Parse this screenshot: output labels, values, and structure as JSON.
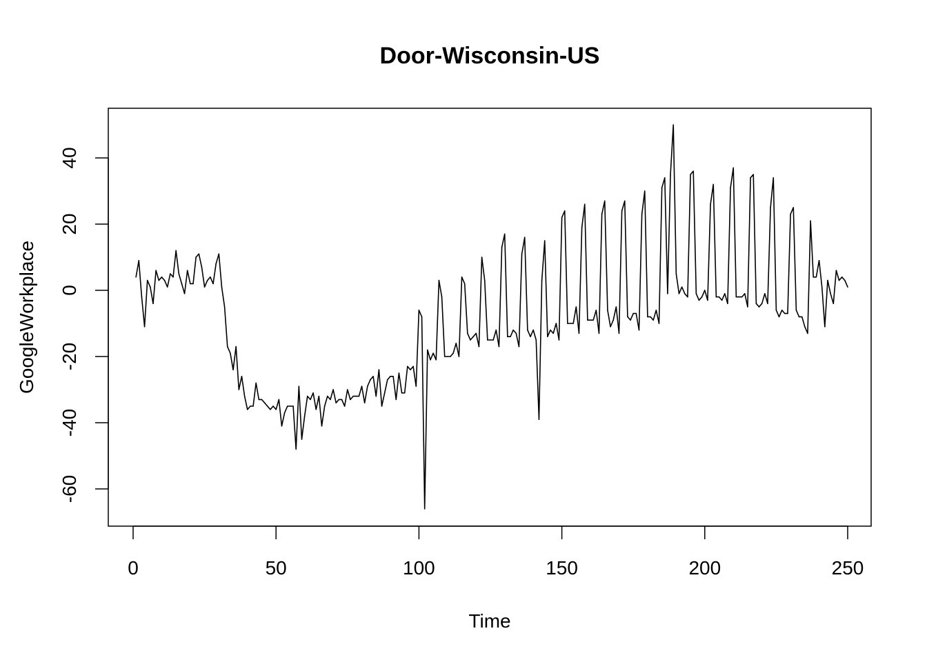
{
  "chart_data": {
    "type": "line",
    "title": "Door-Wisconsin-US",
    "xlabel": "Time",
    "ylabel": "GoogleWorkplace",
    "xlim": [
      1,
      248
    ],
    "ylim": [
      -66,
      50
    ],
    "x_ticks": [
      0,
      50,
      100,
      150,
      200,
      250
    ],
    "y_ticks": [
      -60,
      -40,
      -20,
      0,
      20,
      40
    ],
    "x_tick_labels": [
      "0",
      "50",
      "100",
      "150",
      "200",
      "250"
    ],
    "y_tick_labels": [
      "-60",
      "-40",
      "-20",
      "0",
      "20",
      "40"
    ],
    "grid": false,
    "legend": "none",
    "line_color": "#000000",
    "series": [
      {
        "x_start": 1,
        "values": [
          4,
          9,
          -2,
          -11,
          3,
          1,
          -4,
          6,
          3,
          4,
          3,
          1,
          5,
          4,
          12,
          5,
          2,
          -1,
          6,
          2,
          2,
          10,
          11,
          7,
          1,
          3,
          4,
          2,
          8,
          11,
          1,
          -5,
          -17,
          -19,
          -24,
          -17,
          -30,
          -26,
          -32,
          -36,
          -35,
          -35,
          -28,
          -33,
          -33,
          -34,
          -35,
          -36,
          -35,
          -36,
          -33,
          -41,
          -37,
          -35,
          -35,
          -35,
          -48,
          -29,
          -45,
          -38,
          -32,
          -33,
          -31,
          -36,
          -32,
          -41,
          -35,
          -32,
          -33,
          -30,
          -34,
          -33,
          -33,
          -35,
          -30,
          -33,
          -32,
          -32,
          -32,
          -29,
          -34,
          -29,
          -27,
          -26,
          -32,
          -24,
          -35,
          -31,
          -27,
          -26,
          -26,
          -33,
          -25,
          -31,
          -31,
          -23,
          -24,
          -23,
          -29,
          -6,
          -8,
          -66,
          -18,
          -21,
          -19,
          -21,
          3,
          -2,
          -20,
          -20,
          -20,
          -19,
          -16,
          -20,
          4,
          2,
          -13,
          -15,
          -14,
          -13,
          -17,
          10,
          3,
          -15,
          -15,
          -15,
          -12,
          -17,
          13,
          17,
          -14,
          -14,
          -12,
          -13,
          -17,
          11,
          16,
          -12,
          -14,
          -12,
          -15,
          -39,
          3,
          15,
          -14,
          -12,
          -13,
          -10,
          -15,
          22,
          24,
          -10,
          -10,
          -10,
          -5,
          -13,
          19,
          26,
          -9,
          -9,
          -9,
          -6,
          -13,
          23,
          27,
          -6,
          -11,
          -9,
          -5,
          -13,
          24,
          27,
          -8,
          -9,
          -7,
          -7,
          -12,
          23,
          30,
          -8,
          -8,
          -9,
          -6,
          -10,
          31,
          34,
          -1,
          35,
          50,
          5,
          -1,
          1,
          -1,
          -2,
          35,
          36,
          -1,
          -3,
          -2,
          0,
          -3,
          26,
          32,
          -2,
          -2,
          -3,
          -1,
          -4,
          31,
          37,
          -2,
          -2,
          -2,
          -1,
          -5,
          34,
          35,
          -4,
          -5,
          -4,
          -1,
          -4,
          25,
          34,
          -6,
          -8,
          -6,
          -7,
          -7,
          23,
          25,
          -6,
          -8,
          -8,
          -11,
          -13,
          21,
          4,
          4,
          9,
          1,
          -11,
          3,
          -1,
          -4,
          6,
          3,
          4,
          3,
          1
        ]
      }
    ]
  }
}
